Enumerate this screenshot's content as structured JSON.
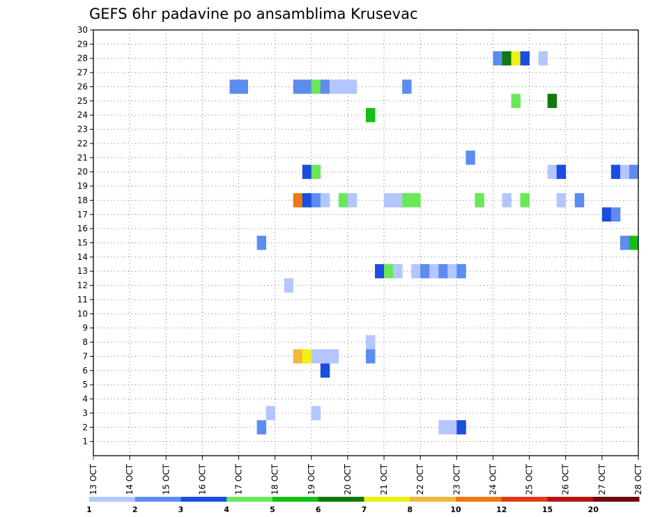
{
  "chart_data": {
    "type": "heatmap",
    "title": "GEFS 6hr padavine po ansamblima Krusevac",
    "xlabel": "",
    "ylabel": "",
    "x_tick_labels": [
      "13 OCT",
      "14 OCT",
      "15 OCT",
      "16 OCT",
      "17 OCT",
      "18 OCT",
      "19 OCT",
      "20 OCT",
      "21 OCT",
      "22 OCT",
      "23 OCT",
      "24 OCT",
      "25 OCT",
      "26 OCT",
      "27 OCT",
      "28 OCT"
    ],
    "x_range_days": [
      13,
      28
    ],
    "y_tick_labels": [
      "1",
      "2",
      "3",
      "4",
      "5",
      "6",
      "7",
      "8",
      "9",
      "10",
      "11",
      "12",
      "13",
      "14",
      "15",
      "16",
      "17",
      "18",
      "19",
      "20",
      "21",
      "22",
      "23",
      "24",
      "25",
      "26",
      "27",
      "28",
      "29",
      "30"
    ],
    "y_range": [
      0,
      30
    ],
    "grid": true,
    "colorbar": {
      "placement": "bottom",
      "labels": [
        "1",
        "2",
        "3",
        "4",
        "5",
        "6",
        "7",
        "8",
        "10",
        "12",
        "15",
        "20"
      ],
      "colors": [
        "#b3c6ff",
        "#5c8cf0",
        "#1a4ee0",
        "#6ae85a",
        "#14c014",
        "#0e7a0e",
        "#f0f014",
        "#f0b83c",
        "#f07814",
        "#e03c14",
        "#b41414",
        "#6e0a0a"
      ]
    },
    "cells": [
      {
        "member": 28,
        "day": 24.0,
        "color": "#5c8cf0"
      },
      {
        "member": 28,
        "day": 24.25,
        "color": "#0e7a0e"
      },
      {
        "member": 28,
        "day": 24.5,
        "color": "#f0f014"
      },
      {
        "member": 28,
        "day": 24.75,
        "color": "#1a4ee0"
      },
      {
        "member": 28,
        "day": 25.25,
        "color": "#b3c6ff"
      },
      {
        "member": 26,
        "day": 16.75,
        "color": "#5c8cf0"
      },
      {
        "member": 26,
        "day": 17.0,
        "color": "#5c8cf0"
      },
      {
        "member": 26,
        "day": 18.5,
        "color": "#5c8cf0"
      },
      {
        "member": 26,
        "day": 18.75,
        "color": "#5c8cf0"
      },
      {
        "member": 26,
        "day": 19.0,
        "color": "#6ae85a"
      },
      {
        "member": 26,
        "day": 19.25,
        "color": "#5c8cf0"
      },
      {
        "member": 26,
        "day": 19.5,
        "color": "#b3c6ff"
      },
      {
        "member": 26,
        "day": 19.75,
        "color": "#b3c6ff"
      },
      {
        "member": 26,
        "day": 20.0,
        "color": "#b3c6ff"
      },
      {
        "member": 26,
        "day": 21.5,
        "color": "#5c8cf0"
      },
      {
        "member": 25,
        "day": 24.5,
        "color": "#6ae85a"
      },
      {
        "member": 25,
        "day": 25.5,
        "color": "#0e7a0e"
      },
      {
        "member": 24,
        "day": 20.5,
        "color": "#14c014"
      },
      {
        "member": 21,
        "day": 23.25,
        "color": "#5c8cf0"
      },
      {
        "member": 20,
        "day": 18.75,
        "color": "#1a4ee0"
      },
      {
        "member": 20,
        "day": 19.0,
        "color": "#6ae85a"
      },
      {
        "member": 20,
        "day": 25.5,
        "color": "#b3c6ff"
      },
      {
        "member": 20,
        "day": 25.75,
        "color": "#1a4ee0"
      },
      {
        "member": 20,
        "day": 27.25,
        "color": "#1a4ee0"
      },
      {
        "member": 20,
        "day": 27.5,
        "color": "#b3c6ff"
      },
      {
        "member": 20,
        "day": 27.75,
        "color": "#5c8cf0"
      },
      {
        "member": 18,
        "day": 18.5,
        "color": "#f07814"
      },
      {
        "member": 18,
        "day": 18.75,
        "color": "#1a4ee0"
      },
      {
        "member": 18,
        "day": 19.0,
        "color": "#5c8cf0"
      },
      {
        "member": 18,
        "day": 19.25,
        "color": "#b3c6ff"
      },
      {
        "member": 18,
        "day": 19.75,
        "color": "#6ae85a"
      },
      {
        "member": 18,
        "day": 20.0,
        "color": "#b3c6ff"
      },
      {
        "member": 18,
        "day": 21.0,
        "color": "#b3c6ff"
      },
      {
        "member": 18,
        "day": 21.25,
        "color": "#b3c6ff"
      },
      {
        "member": 18,
        "day": 21.5,
        "color": "#6ae85a"
      },
      {
        "member": 18,
        "day": 21.75,
        "color": "#6ae85a"
      },
      {
        "member": 18,
        "day": 23.5,
        "color": "#6ae85a"
      },
      {
        "member": 18,
        "day": 24.25,
        "color": "#b3c6ff"
      },
      {
        "member": 18,
        "day": 24.75,
        "color": "#6ae85a"
      },
      {
        "member": 18,
        "day": 25.75,
        "color": "#b3c6ff"
      },
      {
        "member": 18,
        "day": 26.25,
        "color": "#5c8cf0"
      },
      {
        "member": 17,
        "day": 27.0,
        "color": "#1a4ee0"
      },
      {
        "member": 17,
        "day": 27.25,
        "color": "#5c8cf0"
      },
      {
        "member": 15,
        "day": 17.5,
        "color": "#5c8cf0"
      },
      {
        "member": 15,
        "day": 27.5,
        "color": "#5c8cf0"
      },
      {
        "member": 15,
        "day": 27.75,
        "color": "#14c014"
      },
      {
        "member": 13,
        "day": 20.75,
        "color": "#1a4ee0"
      },
      {
        "member": 13,
        "day": 21.0,
        "color": "#6ae85a"
      },
      {
        "member": 13,
        "day": 21.25,
        "color": "#b3c6ff"
      },
      {
        "member": 13,
        "day": 21.75,
        "color": "#b3c6ff"
      },
      {
        "member": 13,
        "day": 22.0,
        "color": "#5c8cf0"
      },
      {
        "member": 13,
        "day": 22.25,
        "color": "#b3c6ff"
      },
      {
        "member": 13,
        "day": 22.5,
        "color": "#5c8cf0"
      },
      {
        "member": 13,
        "day": 22.75,
        "color": "#b3c6ff"
      },
      {
        "member": 13,
        "day": 23.0,
        "color": "#5c8cf0"
      },
      {
        "member": 12,
        "day": 18.25,
        "color": "#b3c6ff"
      },
      {
        "member": 8,
        "day": 20.5,
        "color": "#b3c6ff"
      },
      {
        "member": 7,
        "day": 18.5,
        "color": "#f0b83c"
      },
      {
        "member": 7,
        "day": 18.75,
        "color": "#f0f014"
      },
      {
        "member": 7,
        "day": 19.0,
        "color": "#b3c6ff"
      },
      {
        "member": 7,
        "day": 19.25,
        "color": "#b3c6ff"
      },
      {
        "member": 7,
        "day": 19.5,
        "color": "#b3c6ff"
      },
      {
        "member": 7,
        "day": 20.5,
        "color": "#5c8cf0"
      },
      {
        "member": 6,
        "day": 19.25,
        "color": "#1a4ee0"
      },
      {
        "member": 3,
        "day": 17.75,
        "color": "#b3c6ff"
      },
      {
        "member": 3,
        "day": 19.0,
        "color": "#b3c6ff"
      },
      {
        "member": 2,
        "day": 17.5,
        "color": "#5c8cf0"
      },
      {
        "member": 2,
        "day": 22.5,
        "color": "#b3c6ff"
      },
      {
        "member": 2,
        "day": 22.75,
        "color": "#b3c6ff"
      },
      {
        "member": 2,
        "day": 23.0,
        "color": "#1a4ee0"
      }
    ]
  }
}
